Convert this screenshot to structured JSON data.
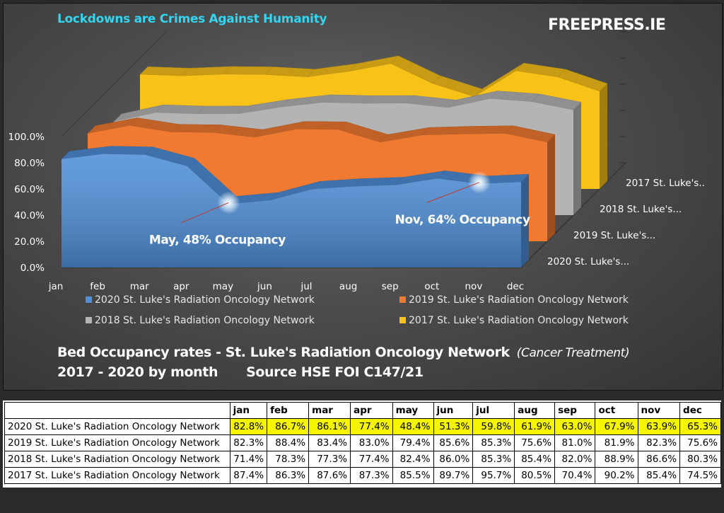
{
  "header": {
    "tagline": "Lockdowns are Crimes Against Humanity",
    "brand": "FREEPRESS.IE"
  },
  "caption": {
    "line1": "Bed Occupancy rates - St. Luke's Radiation Oncology Network",
    "line1_italic": "(Cancer Treatment)",
    "line2": "2017 - 2020 by month",
    "line2_source": "Source HSE FOI C147/21"
  },
  "colors": {
    "s2020": "#4f8fd8",
    "s2019": "#f07a32",
    "s2018": "#b4b4b4",
    "s2017": "#f9c219",
    "annotation": "#33d6f0",
    "highlight": "#f5f500"
  },
  "chart_data": {
    "type": "area",
    "title": "",
    "xlabel": "",
    "ylabel": "",
    "ylim": [
      0,
      100
    ],
    "y_ticks": [
      "0.0%",
      "20.0%",
      "40.0%",
      "60.0%",
      "80.0%",
      "100.0%"
    ],
    "categories": [
      "jan",
      "feb",
      "mar",
      "apr",
      "may",
      "jun",
      "jul",
      "aug",
      "sep",
      "oct",
      "nov",
      "dec"
    ],
    "series": [
      {
        "name": "2020 St. Luke's Radiation Oncology Network",
        "depth_label": "2020 St. Luke's...",
        "color": "#4f8fd8",
        "values": [
          82.8,
          86.7,
          86.1,
          77.4,
          48.4,
          51.3,
          59.8,
          61.9,
          63.0,
          67.9,
          63.9,
          65.3
        ]
      },
      {
        "name": "2019 St. Luke's Radiation Oncology Network",
        "depth_label": "2019 St. Luke's...",
        "color": "#f07a32",
        "values": [
          82.3,
          88.4,
          83.4,
          83.0,
          79.4,
          85.6,
          85.3,
          75.6,
          81.0,
          81.9,
          82.3,
          75.6
        ]
      },
      {
        "name": "2018 St. Luke's Radiation Oncology Network",
        "depth_label": "2018 St. Luke's...",
        "color": "#b4b4b4",
        "values": [
          71.4,
          78.3,
          77.3,
          77.4,
          82.4,
          86.0,
          85.3,
          85.4,
          82.0,
          88.9,
          86.6,
          80.3
        ]
      },
      {
        "name": "2017 St. Luke's Radiation Oncology Network",
        "depth_label": "2017 St. Luke's..",
        "color": "#f9c219",
        "values": [
          87.4,
          86.3,
          87.6,
          87.3,
          85.5,
          89.7,
          95.7,
          80.5,
          70.4,
          90.2,
          85.4,
          74.5
        ]
      }
    ],
    "annotations": [
      {
        "text": "May, 48% Occupancy",
        "category": "may",
        "series": "2020 St. Luke's Radiation Oncology Network"
      },
      {
        "text": "Nov, 64% Occupancy",
        "category": "nov",
        "series": "2020 St. Luke's Radiation Oncology Network"
      }
    ],
    "legend_position": "bottom",
    "grid": false
  },
  "table": {
    "columns": [
      "jan",
      "feb",
      "mar",
      "apr",
      "may",
      "jun",
      "jul",
      "aug",
      "sep",
      "oct",
      "nov",
      "dec"
    ],
    "rows": [
      {
        "label": "2020 St. Luke's Radiation Oncology Network",
        "highlight": true,
        "values": [
          "82.8%",
          "86.7%",
          "86.1%",
          "77.4%",
          "48.4%",
          "51.3%",
          "59.8%",
          "61.9%",
          "63.0%",
          "67.9%",
          "63.9%",
          "65.3%"
        ]
      },
      {
        "label": "2019 St. Luke's Radiation Oncology Network",
        "highlight": false,
        "values": [
          "82.3%",
          "88.4%",
          "83.4%",
          "83.0%",
          "79.4%",
          "85.6%",
          "85.3%",
          "75.6%",
          "81.0%",
          "81.9%",
          "82.3%",
          "75.6%"
        ]
      },
      {
        "label": "2018 St. Luke's Radiation Oncology Network",
        "highlight": false,
        "values": [
          "71.4%",
          "78.3%",
          "77.3%",
          "77.4%",
          "82.4%",
          "86.0%",
          "85.3%",
          "85.4%",
          "82.0%",
          "88.9%",
          "86.6%",
          "80.3%"
        ]
      },
      {
        "label": "2017 St. Luke's Radiation Oncology Network",
        "highlight": false,
        "values": [
          "87.4%",
          "86.3%",
          "87.6%",
          "87.3%",
          "85.5%",
          "89.7%",
          "95.7%",
          "80.5%",
          "70.4%",
          "90.2%",
          "85.4%",
          "74.5%"
        ]
      }
    ]
  }
}
